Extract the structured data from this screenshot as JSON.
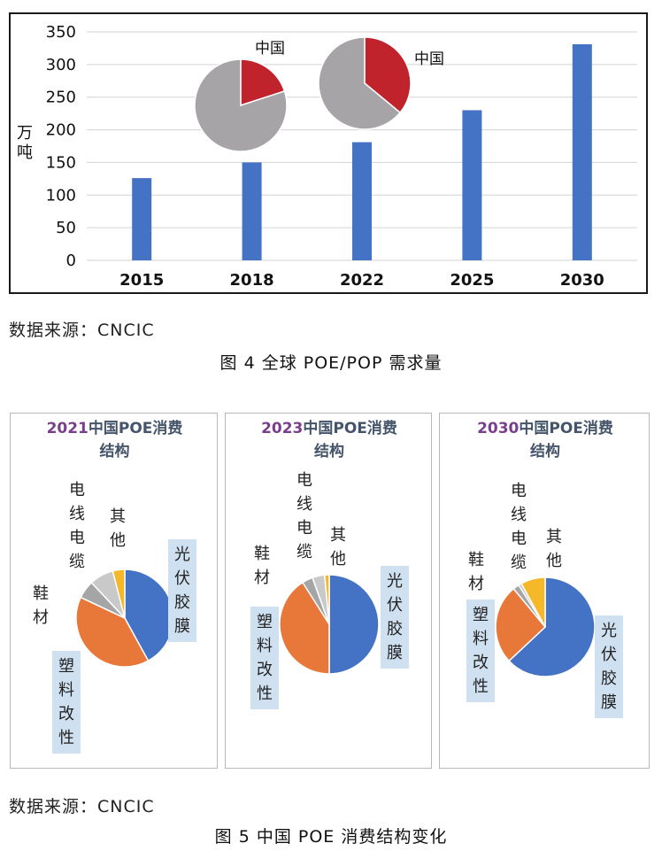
{
  "figure4": {
    "y_axis_title": "万吨",
    "chart_data": {
      "type": "bar",
      "categories": [
        "2015",
        "2018",
        "2022",
        "2025",
        "2030"
      ],
      "values": [
        126,
        150,
        181,
        230,
        331
      ],
      "ylabel": "万吨",
      "ylim": [
        0,
        350
      ],
      "yticks": [
        "0",
        "50",
        "100",
        "150",
        "200",
        "250",
        "300",
        "350"
      ],
      "grid": true,
      "bar_color": "#4472c4",
      "inset_pies": [
        {
          "year": "2018",
          "label": "中国",
          "china_share": 0.2,
          "colors": {
            "china": "#c0232b",
            "rest": "#a6a4a6"
          }
        },
        {
          "year": "2022",
          "label": "中国",
          "china_share": 0.36,
          "colors": {
            "china": "#c0232b",
            "rest": "#a6a4a6"
          }
        }
      ]
    },
    "source": "数据来源：CNCIC",
    "caption": "图 4  全球 POE/POP 需求量"
  },
  "figure5": {
    "chart_data": [
      {
        "type": "pie",
        "title_year": "2021",
        "title_rest_line1": "中国POE消费",
        "title_line2": "结构",
        "labels": [
          "光伏胶膜",
          "塑料改性",
          "鞋材",
          "电线电缆",
          "其他"
        ],
        "values": [
          42,
          40,
          6,
          8,
          4
        ]
      },
      {
        "type": "pie",
        "title_year": "2023",
        "title_rest_line1": "中国POE消费",
        "title_line2": "结构",
        "labels": [
          "光伏胶膜",
          "塑料改性",
          "鞋材",
          "电线电缆",
          "其他"
        ],
        "values": [
          50,
          41,
          3.5,
          4,
          1.5
        ]
      },
      {
        "type": "pie",
        "title_year": "2030",
        "title_rest_line1": "中国POE消费",
        "title_line2": "结构",
        "labels": [
          "光伏胶膜",
          "塑料改性",
          "鞋材",
          "电线电缆",
          "其他"
        ],
        "values": [
          63,
          26,
          2,
          1,
          8
        ]
      }
    ],
    "colors": [
      "#4472c4",
      "#e8773a",
      "#a5a5a5",
      "#c9c9c9",
      "#f5b829"
    ],
    "source": "数据来源：CNCIC",
    "caption": "图 5  中国 POE 消费结构变化"
  }
}
